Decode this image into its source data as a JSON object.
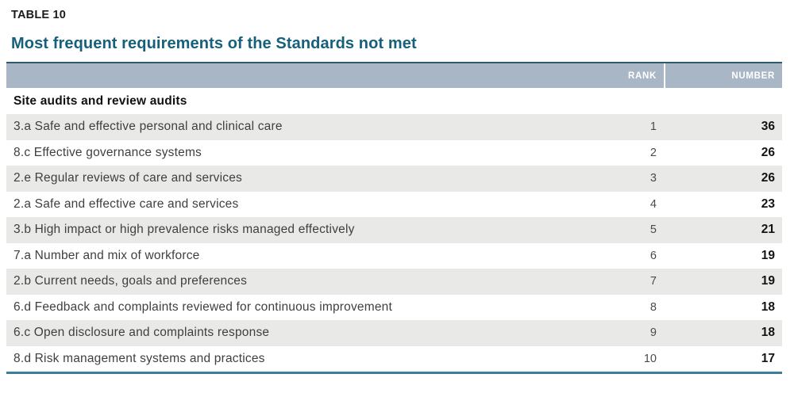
{
  "page": {
    "table_label": "TABLE 10",
    "title": "Most frequent requirements of the Standards not met"
  },
  "table": {
    "columns": {
      "rank": "RANK",
      "number": "NUMBER"
    },
    "section": "Site audits and review audits",
    "rows": [
      {
        "requirement": "3.a Safe and effective personal and clinical care",
        "rank": "1",
        "number": "36"
      },
      {
        "requirement": "8.c Effective governance systems",
        "rank": "2",
        "number": "26"
      },
      {
        "requirement": "2.e Regular reviews of care and services",
        "rank": "3",
        "number": "26"
      },
      {
        "requirement": "2.a Safe and effective care and services",
        "rank": "4",
        "number": "23"
      },
      {
        "requirement": "3.b High impact or high prevalence risks managed effectively",
        "rank": "5",
        "number": "21"
      },
      {
        "requirement": "7.a Number and mix of workforce",
        "rank": "6",
        "number": "19"
      },
      {
        "requirement": "2.b Current needs, goals and preferences",
        "rank": "7",
        "number": "19"
      },
      {
        "requirement": "6.d Feedback and complaints reviewed for continuous improvement",
        "rank": "8",
        "number": "18"
      },
      {
        "requirement": "6.c Open disclosure and complaints response",
        "rank": "9",
        "number": "18"
      },
      {
        "requirement": "8.d Risk management systems and practices",
        "rank": "10",
        "number": "17"
      }
    ]
  },
  "colors": {
    "title_text": "#17607c",
    "header_bg": "#a9b6c5",
    "header_text": "#ffffff",
    "header_top_border": "#2e5a6f",
    "table_bottom_border": "#3a7e9c",
    "row_alt_bg": "#e9e9e7",
    "row_text": "#3f3f3f",
    "number_text": "#141414"
  }
}
